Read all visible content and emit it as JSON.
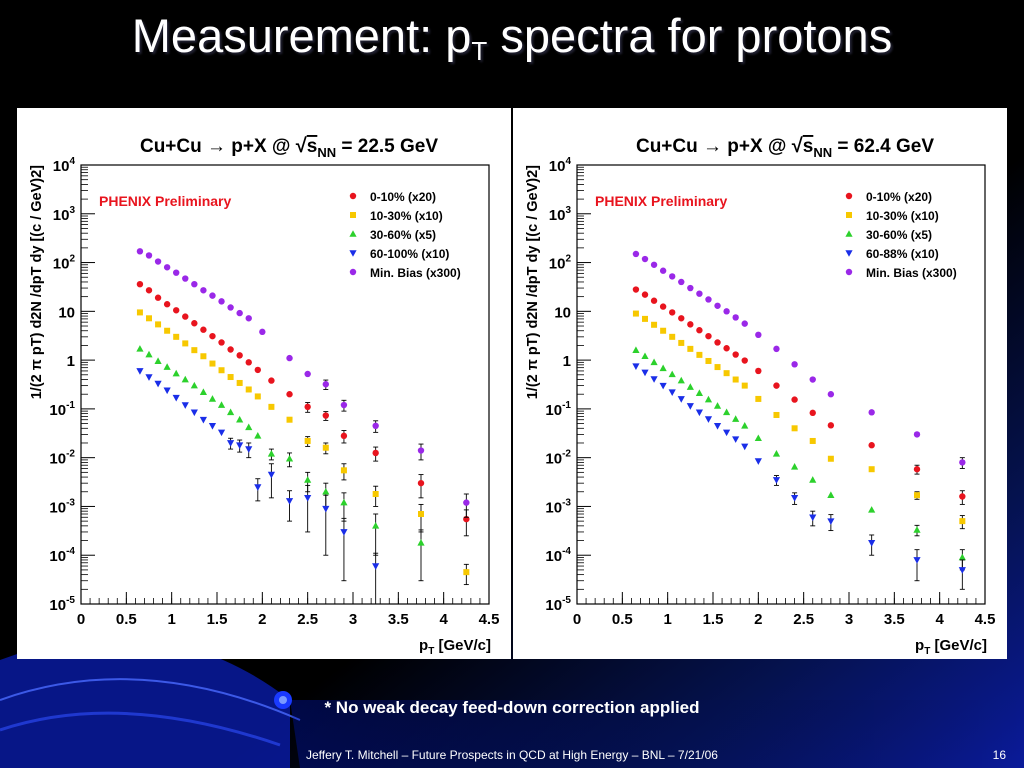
{
  "slide": {
    "title_main": "Measurement: p",
    "title_sub": "T",
    "title_rest": " spectra for protons",
    "footnote": "* No weak decay feed-down correction applied",
    "footer": "Jeffery T. Mitchell – Future Prospects in QCD at High Energy – BNL – 7/21/06",
    "page_number": "16"
  },
  "colors": {
    "background_dark": "#000000",
    "background_blue": "#0a1a9a",
    "series_red": "#e8141e",
    "series_yellow": "#f7c800",
    "series_green": "#2cd12c",
    "series_blue": "#1a2ee8",
    "series_purple": "#9a28e8",
    "preliminary_label": "#e8141e"
  },
  "chart_data": [
    {
      "type": "scatter",
      "title_pre": "Cu+Cu → p+X @",
      "title_s": "s",
      "title_sub": "NN",
      "title_post": "= 22.5 GeV",
      "annotation": "PHENIX Preliminary",
      "xlabel_main": "p",
      "xlabel_sub": "T",
      "xlabel_rest": " [GeV/c]",
      "ylabel": "1/(2 π pT) d2N /dpT dy [(c / GeV)2]",
      "yscale": "log",
      "xlim": [
        0,
        4.5
      ],
      "ylim": [
        1e-05,
        10000
      ],
      "x_ticks": [
        "0",
        "0.5",
        "1",
        "1.5",
        "2",
        "2.5",
        "3",
        "3.5",
        "4",
        "4.5"
      ],
      "y_ticks": [
        {
          "base": "10",
          "exp": "-5"
        },
        {
          "base": "10",
          "exp": "-4"
        },
        {
          "base": "10",
          "exp": "-3"
        },
        {
          "base": "10",
          "exp": "-2"
        },
        {
          "base": "10",
          "exp": "-1"
        },
        {
          "base": "1",
          "exp": ""
        },
        {
          "base": "10",
          "exp": ""
        },
        {
          "base": "10",
          "exp": "2"
        },
        {
          "base": "10",
          "exp": "3"
        },
        {
          "base": "10",
          "exp": "4"
        }
      ],
      "legend_position": "top-right",
      "series": [
        {
          "name": "0-10% (x20)",
          "marker": "circle",
          "color": "#e8141e",
          "x": [
            0.65,
            0.75,
            0.85,
            0.95,
            1.05,
            1.15,
            1.25,
            1.35,
            1.45,
            1.55,
            1.65,
            1.75,
            1.85,
            1.95,
            2.1,
            2.3,
            2.5,
            2.7,
            2.9,
            3.25,
            3.75,
            4.25
          ],
          "y": [
            36,
            27,
            19,
            14,
            10.5,
            7.8,
            5.7,
            4.2,
            3.1,
            2.3,
            1.65,
            1.25,
            0.9,
            0.63,
            0.38,
            0.2,
            0.11,
            0.073,
            0.028,
            0.0125,
            0.003,
            0.00055
          ],
          "err": [
            0,
            0,
            0,
            0,
            0,
            0,
            0,
            0,
            0,
            0,
            0,
            0,
            0,
            0,
            0,
            0,
            0.025,
            0.015,
            0.008,
            0.004,
            0.0015,
            0.0003
          ]
        },
        {
          "name": "10-30% (x10)",
          "marker": "square",
          "color": "#f7c800",
          "x": [
            0.65,
            0.75,
            0.85,
            0.95,
            1.05,
            1.15,
            1.25,
            1.35,
            1.45,
            1.55,
            1.65,
            1.75,
            1.85,
            1.95,
            2.1,
            2.3,
            2.5,
            2.7,
            2.9,
            3.25,
            3.75,
            4.25
          ],
          "y": [
            9.5,
            7.2,
            5.4,
            4.0,
            3.0,
            2.2,
            1.6,
            1.2,
            0.85,
            0.62,
            0.45,
            0.34,
            0.25,
            0.18,
            0.11,
            0.06,
            0.022,
            0.016,
            0.0055,
            0.0018,
            0.0007,
            4.5e-05
          ],
          "err": [
            0,
            0,
            0,
            0,
            0,
            0,
            0,
            0,
            0,
            0,
            0,
            0,
            0,
            0,
            0,
            0,
            0.005,
            0.004,
            0.002,
            0.0008,
            0.0004,
            2e-05
          ]
        },
        {
          "name": "30-60% (x5)",
          "marker": "triangle-up",
          "color": "#2cd12c",
          "x": [
            0.65,
            0.75,
            0.85,
            0.95,
            1.05,
            1.15,
            1.25,
            1.35,
            1.45,
            1.55,
            1.65,
            1.75,
            1.85,
            1.95,
            2.1,
            2.3,
            2.5,
            2.7,
            2.9,
            3.25,
            3.75
          ],
          "y": [
            1.7,
            1.3,
            0.95,
            0.72,
            0.53,
            0.4,
            0.3,
            0.22,
            0.16,
            0.12,
            0.085,
            0.06,
            0.042,
            0.028,
            0.012,
            0.0095,
            0.0035,
            0.002,
            0.0012,
            0.0004,
            0.00018
          ],
          "err": [
            0,
            0,
            0,
            0,
            0,
            0,
            0,
            0,
            0,
            0,
            0,
            0,
            0,
            0,
            0.003,
            0.003,
            0.0015,
            0.001,
            0.0007,
            0.0003,
            0.00015
          ]
        },
        {
          "name": "60-100% (x10)",
          "marker": "triangle-down",
          "color": "#1a2ee8",
          "x": [
            0.65,
            0.75,
            0.85,
            0.95,
            1.05,
            1.15,
            1.25,
            1.35,
            1.45,
            1.55,
            1.65,
            1.75,
            1.85,
            1.95,
            2.1,
            2.3,
            2.5,
            2.7,
            2.9,
            3.25
          ],
          "y": [
            0.6,
            0.45,
            0.33,
            0.24,
            0.17,
            0.12,
            0.085,
            0.06,
            0.045,
            0.033,
            0.02,
            0.018,
            0.015,
            0.0025,
            0.0045,
            0.0013,
            0.0015,
            0.0009,
            0.0003,
            6e-05
          ],
          "err": [
            0,
            0,
            0,
            0,
            0,
            0,
            0,
            0,
            0,
            0,
            0.005,
            0.005,
            0.005,
            0.0012,
            0.003,
            0.0008,
            0.0012,
            0.0008,
            0.00027,
            5e-05
          ]
        },
        {
          "name": "Min. Bias (x300)",
          "marker": "circle",
          "color": "#9a28e8",
          "x": [
            0.65,
            0.75,
            0.85,
            0.95,
            1.05,
            1.15,
            1.25,
            1.35,
            1.45,
            1.55,
            1.65,
            1.75,
            1.85,
            2.0,
            2.3,
            2.5,
            2.7,
            2.9,
            3.25,
            3.75,
            4.25
          ],
          "y": [
            170,
            140,
            105,
            80,
            62,
            47,
            36,
            27,
            21,
            16,
            12,
            9.2,
            7.2,
            3.8,
            1.1,
            0.52,
            0.32,
            0.12,
            0.045,
            0.014,
            0.0012
          ],
          "err": [
            0,
            0,
            0,
            0,
            0,
            0,
            0,
            0,
            0,
            0,
            0,
            0,
            0,
            0,
            0,
            0,
            0.07,
            0.03,
            0.012,
            0.005,
            0.0006
          ]
        }
      ]
    },
    {
      "type": "scatter",
      "title_pre": "Cu+Cu → p+X @",
      "title_s": "s",
      "title_sub": "NN",
      "title_post": "= 62.4 GeV",
      "annotation": "PHENIX Preliminary",
      "xlabel_main": "p",
      "xlabel_sub": "T",
      "xlabel_rest": " [GeV/c]",
      "ylabel": "1/(2 π pT) d2N /dpT dy [(c / GeV)2]",
      "yscale": "log",
      "xlim": [
        0,
        4.5
      ],
      "ylim": [
        1e-05,
        10000
      ],
      "x_ticks": [
        "0",
        "0.5",
        "1",
        "1.5",
        "2",
        "2.5",
        "3",
        "3.5",
        "4",
        "4.5"
      ],
      "y_ticks": [
        {
          "base": "10",
          "exp": "-5"
        },
        {
          "base": "10",
          "exp": "-4"
        },
        {
          "base": "10",
          "exp": "-3"
        },
        {
          "base": "10",
          "exp": "-2"
        },
        {
          "base": "10",
          "exp": "-1"
        },
        {
          "base": "1",
          "exp": ""
        },
        {
          "base": "10",
          "exp": ""
        },
        {
          "base": "10",
          "exp": "2"
        },
        {
          "base": "10",
          "exp": "3"
        },
        {
          "base": "10",
          "exp": "4"
        }
      ],
      "legend_position": "top-right",
      "series": [
        {
          "name": "0-10% (x20)",
          "marker": "circle",
          "color": "#e8141e",
          "x": [
            0.65,
            0.75,
            0.85,
            0.95,
            1.05,
            1.15,
            1.25,
            1.35,
            1.45,
            1.55,
            1.65,
            1.75,
            1.85,
            2.0,
            2.2,
            2.4,
            2.6,
            2.8,
            3.25,
            3.75,
            4.25
          ],
          "y": [
            28,
            22,
            16.5,
            12.5,
            9.5,
            7.2,
            5.4,
            4.1,
            3.1,
            2.3,
            1.75,
            1.3,
            0.98,
            0.6,
            0.3,
            0.155,
            0.083,
            0.046,
            0.018,
            0.0058,
            0.0016
          ],
          "err": [
            0,
            0,
            0,
            0,
            0,
            0,
            0,
            0,
            0,
            0,
            0,
            0,
            0,
            0,
            0,
            0,
            0,
            0,
            0,
            0.0012,
            0.0005
          ]
        },
        {
          "name": "10-30% (x10)",
          "marker": "square",
          "color": "#f7c800",
          "x": [
            0.65,
            0.75,
            0.85,
            0.95,
            1.05,
            1.15,
            1.25,
            1.35,
            1.45,
            1.55,
            1.65,
            1.75,
            1.85,
            2.0,
            2.2,
            2.4,
            2.6,
            2.8,
            3.25,
            3.75,
            4.25
          ],
          "y": [
            9.0,
            7.0,
            5.3,
            4.0,
            3.0,
            2.25,
            1.7,
            1.28,
            0.96,
            0.72,
            0.54,
            0.4,
            0.3,
            0.16,
            0.075,
            0.04,
            0.022,
            0.0095,
            0.0058,
            0.0017,
            0.0005
          ],
          "err": [
            0,
            0,
            0,
            0,
            0,
            0,
            0,
            0,
            0,
            0,
            0,
            0,
            0,
            0,
            0,
            0,
            0,
            0,
            0,
            0.0003,
            0.00015
          ]
        },
        {
          "name": "30-60% (x5)",
          "marker": "triangle-up",
          "color": "#2cd12c",
          "x": [
            0.65,
            0.75,
            0.85,
            0.95,
            1.05,
            1.15,
            1.25,
            1.35,
            1.45,
            1.55,
            1.65,
            1.75,
            1.85,
            2.0,
            2.2,
            2.4,
            2.6,
            2.8,
            3.25,
            3.75,
            4.25
          ],
          "y": [
            1.6,
            1.2,
            0.9,
            0.68,
            0.51,
            0.38,
            0.28,
            0.21,
            0.155,
            0.115,
            0.085,
            0.062,
            0.045,
            0.025,
            0.012,
            0.0065,
            0.0035,
            0.0017,
            0.00085,
            0.00033,
            9e-05
          ],
          "err": [
            0,
            0,
            0,
            0,
            0,
            0,
            0,
            0,
            0,
            0,
            0,
            0,
            0,
            0,
            0,
            0,
            0,
            0,
            0,
            8e-05,
            4e-05
          ]
        },
        {
          "name": "60-88% (x10)",
          "marker": "triangle-down",
          "color": "#1a2ee8",
          "x": [
            0.65,
            0.75,
            0.85,
            0.95,
            1.05,
            1.15,
            1.25,
            1.35,
            1.45,
            1.55,
            1.65,
            1.75,
            1.85,
            2.0,
            2.2,
            2.4,
            2.6,
            2.8,
            3.25,
            3.75,
            4.25
          ],
          "y": [
            0.75,
            0.56,
            0.41,
            0.3,
            0.22,
            0.16,
            0.115,
            0.085,
            0.062,
            0.045,
            0.033,
            0.024,
            0.017,
            0.0085,
            0.0035,
            0.0015,
            0.0006,
            0.0005,
            0.00018,
            8e-05,
            5e-05
          ],
          "err": [
            0,
            0,
            0,
            0,
            0,
            0,
            0,
            0,
            0,
            0,
            0,
            0,
            0,
            0,
            0.0008,
            0.0004,
            0.0002,
            0.00018,
            8e-05,
            5e-05,
            3e-05
          ]
        },
        {
          "name": "Min. Bias (x300)",
          "marker": "circle",
          "color": "#9a28e8",
          "x": [
            0.65,
            0.75,
            0.85,
            0.95,
            1.05,
            1.15,
            1.25,
            1.35,
            1.45,
            1.55,
            1.65,
            1.75,
            1.85,
            2.0,
            2.2,
            2.4,
            2.6,
            2.8,
            3.25,
            3.75,
            4.25
          ],
          "y": [
            150,
            118,
            90,
            68,
            52,
            40,
            30,
            23,
            17.5,
            13,
            10,
            7.5,
            5.6,
            3.3,
            1.7,
            0.82,
            0.4,
            0.2,
            0.085,
            0.03,
            0.008
          ],
          "err": [
            0,
            0,
            0,
            0,
            0,
            0,
            0,
            0,
            0,
            0,
            0,
            0,
            0,
            0,
            0,
            0,
            0,
            0,
            0,
            0,
            0.002
          ]
        }
      ]
    }
  ]
}
